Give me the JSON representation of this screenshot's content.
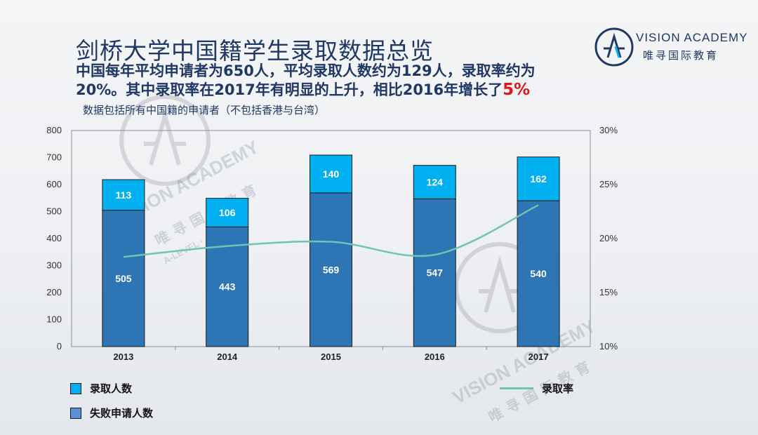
{
  "header": {
    "title": "剑桥大学中国籍学生录取数据总览",
    "summary_part1": "中国每年平均申请者为650人，平均录取人数约为129人，录取率约为20%。其中录取率在2017年有明显的上升，相比2016年增长了",
    "summary_highlight": "5%",
    "note": "数据包括所有中国籍的申请者（不包括香港与台湾）"
  },
  "logo": {
    "name": "VISION ACADEMY",
    "subtitle": "唯寻国际教育"
  },
  "watermark": {
    "name": "VISION ACADEMY",
    "chinese": "唯寻国际教育",
    "sub": "A-LEVEL · AP · GCSE"
  },
  "colors": {
    "admitted": "#00b0f0",
    "rejected": "#2e75b6",
    "rate_line": "#6fc4b3",
    "title": "#1f3864",
    "highlight": "#e0151b"
  },
  "chart_data": {
    "type": "bar",
    "stacked": true,
    "categories": [
      "2013",
      "2014",
      "2015",
      "2016",
      "2017"
    ],
    "series": [
      {
        "name": "失败申请人数",
        "values": [
          505,
          443,
          569,
          547,
          540
        ],
        "color": "#2e75b6"
      },
      {
        "name": "录取人数",
        "values": [
          113,
          106,
          140,
          124,
          162
        ],
        "color": "#00b0f0"
      }
    ],
    "line_series": {
      "name": "录取率",
      "axis": "right",
      "values": [
        18.3,
        19.3,
        19.7,
        18.5,
        23.1
      ],
      "color": "#6fc4b3"
    },
    "ylim": [
      0,
      800
    ],
    "yticks": [
      0,
      100,
      200,
      300,
      400,
      500,
      600,
      700,
      800
    ],
    "y2lim": [
      10,
      30
    ],
    "y2ticks": [
      "10%",
      "15%",
      "20%",
      "25%",
      "30%"
    ],
    "grid": false,
    "legend_entries": [
      "录取人数",
      "失败申请人数",
      "录取率"
    ]
  }
}
